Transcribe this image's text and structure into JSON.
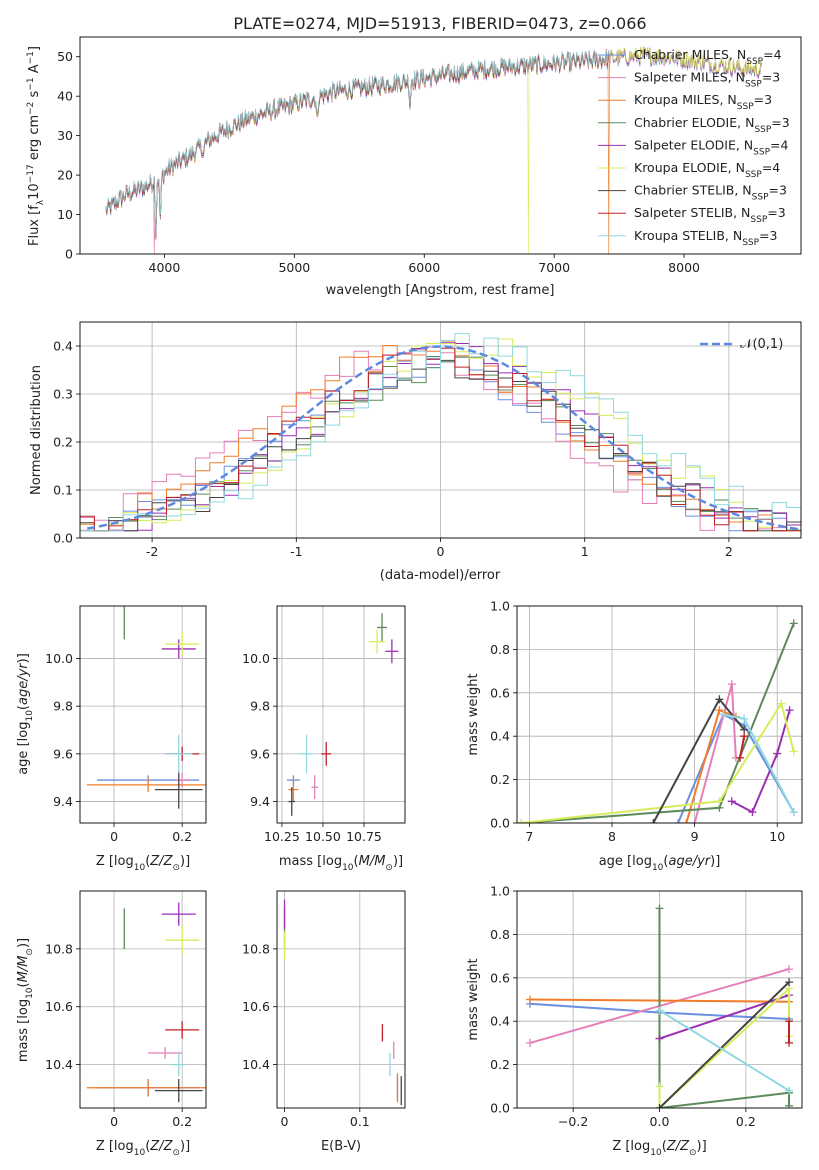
{
  "title": "PLATE=0274, MJD=51913, FIBERID=0473, z=0.066",
  "colors": {
    "chabrier_miles": "#6b8fe0",
    "salpeter_miles": "#e57fb8",
    "kroupa_miles": "#f07d2a",
    "chabrier_elodie": "#5b8a5b",
    "salpeter_elodie": "#9b2fb3",
    "kroupa_elodie": "#d7ec5a",
    "chabrier_stelib": "#444444",
    "salpeter_stelib": "#c0202a",
    "kroupa_stelib": "#8fd8e0",
    "normal_curve": "#5b8be0"
  },
  "chart_data": [
    {
      "id": "spectrum",
      "type": "line",
      "xlabel": "wavelength [Angstrom, rest frame]",
      "ylabel": "Flux [f_λ10^-17 erg cm^-2 s^-1 A^-1]",
      "xlim": [
        3350,
        8900
      ],
      "ylim": [
        0,
        55
      ],
      "xticks": [
        4000,
        5000,
        6000,
        7000,
        8000
      ],
      "yticks": [
        0,
        10,
        20,
        30,
        40,
        50
      ],
      "legend_position": "right",
      "series": [
        {
          "name": "Chabrier MILES, N_SSP=4",
          "color_key": "chabrier_miles"
        },
        {
          "name": "Salpeter MILES, N_SSP=3",
          "color_key": "salpeter_miles"
        },
        {
          "name": "Kroupa MILES, N_SSP=3",
          "color_key": "kroupa_miles"
        },
        {
          "name": "Chabrier ELODIE, N_SSP=3",
          "color_key": "chabrier_elodie"
        },
        {
          "name": "Salpeter ELODIE, N_SSP=4",
          "color_key": "salpeter_elodie"
        },
        {
          "name": "Kroupa ELODIE, N_SSP=4",
          "color_key": "kroupa_elodie"
        },
        {
          "name": "Chabrier STELIB, N_SSP=3",
          "color_key": "chabrier_stelib"
        },
        {
          "name": "Salpeter STELIB, N_SSP=3",
          "color_key": "salpeter_stelib"
        },
        {
          "name": "Kroupa STELIB, N_SSP=3",
          "color_key": "kroupa_stelib"
        }
      ],
      "continuum": {
        "x": [
          3550,
          3700,
          3850,
          3950,
          4050,
          4200,
          4350,
          4500,
          4700,
          4900,
          5100,
          5300,
          5500,
          5700,
          5900,
          6100,
          6300,
          6500,
          6700,
          6900,
          7100,
          7300,
          7500,
          7700,
          7900,
          8100,
          8300,
          8500
        ],
        "y": [
          11,
          15,
          17,
          19,
          22,
          25,
          29,
          32,
          35,
          37,
          39,
          41,
          42,
          43,
          44,
          45,
          46,
          47,
          47.5,
          48,
          48.5,
          49,
          50,
          50.5,
          50,
          49,
          48,
          47
        ]
      },
      "dips": [
        {
          "x": 3934,
          "y": 5
        },
        {
          "x": 3968,
          "y": 7
        },
        {
          "x": 4300,
          "y": 25
        },
        {
          "x": 5175,
          "y": 33
        },
        {
          "x": 5890,
          "y": 38
        }
      ],
      "dropouts": [
        {
          "series_index": 5,
          "x": 6800,
          "y": 0
        },
        {
          "series_index": 2,
          "x": 7420,
          "y": 0
        },
        {
          "series_index": 1,
          "x": 3920,
          "y": 0
        }
      ]
    },
    {
      "id": "residuals",
      "type": "step",
      "xlabel": "(data-model)/error",
      "ylabel": "Normed distribution",
      "xlim": [
        -2.5,
        2.5
      ],
      "ylim": [
        0,
        0.45
      ],
      "xticks": [
        -2,
        -1,
        0,
        1,
        2
      ],
      "yticks": [
        0.0,
        0.1,
        0.2,
        0.3,
        0.4
      ],
      "grid": true,
      "legend_position": "top-right",
      "normal_label": "𝒩(0,1)",
      "normal_mean": 0,
      "normal_sigma": 1,
      "bin_width": 0.1
    },
    {
      "id": "age_vs_Z",
      "type": "errorbar",
      "xlabel": "Z [log10(Z/Z☉)]",
      "ylabel": "age [log10(age/yr)]",
      "xlim": [
        -0.1,
        0.27
      ],
      "ylim": [
        9.31,
        10.22
      ],
      "xticks": [
        0.0,
        0.2
      ],
      "yticks": [
        9.4,
        9.6,
        9.8,
        10.0
      ],
      "grid": true,
      "points": [
        {
          "color_key": "chabrier_miles",
          "x": 0.1,
          "y": 9.49,
          "xerr": 0.15,
          "yerr": 0.02
        },
        {
          "color_key": "salpeter_miles",
          "x": 0.2,
          "y": 9.49,
          "xerr": 0.02,
          "yerr": 0.03
        },
        {
          "color_key": "kroupa_miles",
          "x": 0.1,
          "y": 9.47,
          "xerr": 0.18,
          "yerr": 0.03
        },
        {
          "color_key": "chabrier_elodie",
          "x": 0.03,
          "y": 10.15,
          "xerr": 0.0,
          "yerr": 0.07
        },
        {
          "color_key": "salpeter_elodie",
          "x": 0.19,
          "y": 10.04,
          "xerr": 0.05,
          "yerr": 0.04
        },
        {
          "color_key": "kroupa_elodie",
          "x": 0.2,
          "y": 10.06,
          "xerr": 0.05,
          "yerr": 0.05
        },
        {
          "color_key": "chabrier_stelib",
          "x": 0.19,
          "y": 9.45,
          "xerr": 0.07,
          "yerr": 0.08
        },
        {
          "color_key": "salpeter_stelib",
          "x": 0.2,
          "y": 9.6,
          "xerr": 0.05,
          "yerr": 0.03
        },
        {
          "color_key": "kroupa_stelib",
          "x": 0.19,
          "y": 9.6,
          "xerr": 0.04,
          "yerr": 0.08
        }
      ]
    },
    {
      "id": "age_vs_mass",
      "type": "errorbar",
      "xlabel": "mass [log10(M/M☉)]",
      "ylabel": "",
      "xlim": [
        10.22,
        11.0
      ],
      "ylim": [
        9.31,
        10.22
      ],
      "xticks": [
        10.25,
        10.5,
        10.75
      ],
      "tick_labels": [
        "10.25",
        "10.50",
        "10.75"
      ],
      "yticks": [
        9.4,
        9.6,
        9.8,
        10.0
      ],
      "grid": true,
      "points": [
        {
          "color_key": "chabrier_miles",
          "x": 10.32,
          "y": 9.49,
          "xerr": 0.04,
          "yerr": 0.02
        },
        {
          "color_key": "salpeter_miles",
          "x": 10.45,
          "y": 9.46,
          "xerr": 0.02,
          "yerr": 0.05
        },
        {
          "color_key": "kroupa_miles",
          "x": 10.32,
          "y": 9.45,
          "xerr": 0.03,
          "yerr": 0.05
        },
        {
          "color_key": "chabrier_elodie",
          "x": 10.86,
          "y": 10.13,
          "xerr": 0.03,
          "yerr": 0.06
        },
        {
          "color_key": "salpeter_elodie",
          "x": 10.92,
          "y": 10.03,
          "xerr": 0.04,
          "yerr": 0.05
        },
        {
          "color_key": "kroupa_elodie",
          "x": 10.83,
          "y": 10.07,
          "xerr": 0.05,
          "yerr": 0.05
        },
        {
          "color_key": "chabrier_stelib",
          "x": 10.31,
          "y": 9.4,
          "xerr": 0.02,
          "yerr": 0.06
        },
        {
          "color_key": "salpeter_stelib",
          "x": 10.52,
          "y": 9.6,
          "xerr": 0.03,
          "yerr": 0.05
        },
        {
          "color_key": "kroupa_stelib",
          "x": 10.4,
          "y": 9.6,
          "xerr": 0.04,
          "yerr": 0.08
        }
      ]
    },
    {
      "id": "massweight_vs_age",
      "type": "line",
      "xlabel": "age [log10(age/yr)]",
      "ylabel": "mass weight",
      "xlim": [
        6.85,
        10.3
      ],
      "ylim": [
        0.0,
        1.0
      ],
      "xticks": [
        7,
        8,
        9,
        10
      ],
      "yticks": [
        0.0,
        0.2,
        0.4,
        0.6,
        0.8,
        1.0
      ],
      "grid": true,
      "series": [
        {
          "color_key": "chabrier_miles",
          "points": [
            [
              8.8,
              0.0
            ],
            [
              9.35,
              0.5
            ],
            [
              9.6,
              0.45
            ],
            [
              10.2,
              0.05
            ]
          ]
        },
        {
          "color_key": "salpeter_miles",
          "points": [
            [
              9.0,
              0.0
            ],
            [
              9.45,
              0.64
            ],
            [
              9.5,
              0.3
            ]
          ]
        },
        {
          "color_key": "kroupa_miles",
          "points": [
            [
              8.9,
              0.0
            ],
            [
              9.3,
              0.52
            ],
            [
              9.5,
              0.49
            ]
          ]
        },
        {
          "color_key": "chabrier_elodie",
          "points": [
            [
              6.9,
              0.0
            ],
            [
              9.3,
              0.07
            ],
            [
              10.2,
              0.92
            ]
          ]
        },
        {
          "color_key": "salpeter_elodie",
          "points": [
            [
              9.45,
              0.1
            ],
            [
              9.7,
              0.05
            ],
            [
              10.0,
              0.32
            ],
            [
              10.15,
              0.52
            ]
          ]
        },
        {
          "color_key": "kroupa_elodie",
          "points": [
            [
              6.9,
              0.0
            ],
            [
              9.3,
              0.1
            ],
            [
              10.05,
              0.55
            ],
            [
              10.2,
              0.33
            ]
          ]
        },
        {
          "color_key": "chabrier_stelib",
          "points": [
            [
              8.5,
              0.0
            ],
            [
              9.3,
              0.57
            ],
            [
              9.6,
              0.43
            ]
          ]
        },
        {
          "color_key": "salpeter_stelib",
          "points": [
            [
              9.55,
              0.3
            ],
            [
              9.6,
              0.4
            ]
          ]
        },
        {
          "color_key": "kroupa_stelib",
          "points": [
            [
              9.35,
              0.5
            ],
            [
              9.6,
              0.48
            ],
            [
              10.2,
              0.05
            ]
          ]
        }
      ]
    },
    {
      "id": "mass_vs_Z",
      "type": "errorbar",
      "xlabel": "Z [log10(Z/Z☉)]",
      "ylabel": "mass [log10(M/M☉)]",
      "xlim": [
        -0.1,
        0.27
      ],
      "ylim": [
        10.25,
        11.0
      ],
      "xticks": [
        0.0,
        0.2
      ],
      "yticks": [
        10.4,
        10.6,
        10.8
      ],
      "grid": true,
      "points": [
        {
          "color_key": "chabrier_miles",
          "x": 0.1,
          "y": 10.32,
          "xerr": 0.15,
          "yerr": 0.03
        },
        {
          "color_key": "salpeter_miles",
          "x": 0.15,
          "y": 10.44,
          "xerr": 0.05,
          "yerr": 0.02
        },
        {
          "color_key": "kroupa_miles",
          "x": 0.1,
          "y": 10.32,
          "xerr": 0.18,
          "yerr": 0.03
        },
        {
          "color_key": "chabrier_elodie",
          "x": 0.03,
          "y": 10.87,
          "xerr": 0.0,
          "yerr": 0.07
        },
        {
          "color_key": "salpeter_elodie",
          "x": 0.19,
          "y": 10.92,
          "xerr": 0.05,
          "yerr": 0.04
        },
        {
          "color_key": "kroupa_elodie",
          "x": 0.2,
          "y": 10.83,
          "xerr": 0.05,
          "yerr": 0.05
        },
        {
          "color_key": "chabrier_stelib",
          "x": 0.19,
          "y": 10.31,
          "xerr": 0.07,
          "yerr": 0.04
        },
        {
          "color_key": "salpeter_stelib",
          "x": 0.2,
          "y": 10.52,
          "xerr": 0.05,
          "yerr": 0.03
        },
        {
          "color_key": "kroupa_stelib",
          "x": 0.19,
          "y": 10.4,
          "xerr": 0.02,
          "yerr": 0.04
        }
      ]
    },
    {
      "id": "mass_vs_ebv",
      "type": "errorbar",
      "xlabel": "E(B-V)",
      "ylabel": "",
      "xlim": [
        -0.01,
        0.16
      ],
      "ylim": [
        10.25,
        11.0
      ],
      "xticks": [
        0.0,
        0.1
      ],
      "yticks": [
        10.4,
        10.6,
        10.8
      ],
      "grid": true,
      "points": [
        {
          "color_key": "chabrier_miles",
          "x": 0.15,
          "y": 10.32,
          "xerr": 0.0,
          "yerr": 0.04
        },
        {
          "color_key": "salpeter_miles",
          "x": 0.145,
          "y": 10.45,
          "xerr": 0.0,
          "yerr": 0.03
        },
        {
          "color_key": "kroupa_miles",
          "x": 0.15,
          "y": 10.32,
          "xerr": 0.0,
          "yerr": 0.05
        },
        {
          "color_key": "chabrier_elodie",
          "x": 0.0,
          "y": 10.87,
          "xerr": 0.0,
          "yerr": 0.07
        },
        {
          "color_key": "salpeter_elodie",
          "x": 0.0,
          "y": 10.92,
          "xerr": 0.0,
          "yerr": 0.05
        },
        {
          "color_key": "kroupa_elodie",
          "x": 0.0,
          "y": 10.81,
          "xerr": 0.0,
          "yerr": 0.05
        },
        {
          "color_key": "chabrier_stelib",
          "x": 0.155,
          "y": 10.31,
          "xerr": 0.0,
          "yerr": 0.05
        },
        {
          "color_key": "salpeter_stelib",
          "x": 0.13,
          "y": 10.51,
          "xerr": 0.0,
          "yerr": 0.03
        },
        {
          "color_key": "kroupa_stelib",
          "x": 0.14,
          "y": 10.4,
          "xerr": 0.0,
          "yerr": 0.04
        }
      ]
    },
    {
      "id": "massweight_vs_Z",
      "type": "line",
      "xlabel": "Z [log10(Z/Z☉)]",
      "ylabel": "mass weight",
      "xlim": [
        -0.33,
        0.33
      ],
      "ylim": [
        0.0,
        1.0
      ],
      "xticks": [
        -0.2,
        0.0,
        0.2
      ],
      "tick_labels": [
        "−0.2",
        "0.0",
        "0.2"
      ],
      "yticks": [
        0.0,
        0.2,
        0.4,
        0.6,
        0.8,
        1.0
      ],
      "grid": true,
      "series": [
        {
          "color_key": "chabrier_miles",
          "points": [
            [
              -0.3,
              0.48
            ],
            [
              0.0,
              0.44
            ],
            [
              0.3,
              0.41
            ]
          ]
        },
        {
          "color_key": "salpeter_miles",
          "points": [
            [
              -0.3,
              0.3
            ],
            [
              0.3,
              0.64
            ]
          ]
        },
        {
          "color_key": "kroupa_miles",
          "points": [
            [
              -0.3,
              0.5
            ],
            [
              0.3,
              0.49
            ]
          ]
        },
        {
          "color_key": "chabrier_elodie",
          "points": [
            [
              0.0,
              0.0
            ],
            [
              0.0,
              0.92
            ],
            [
              0.0,
              0.0
            ],
            [
              0.3,
              0.07
            ],
            [
              0.3,
              0.01
            ]
          ]
        },
        {
          "color_key": "salpeter_elodie",
          "points": [
            [
              0.0,
              0.32
            ],
            [
              0.3,
              0.52
            ]
          ]
        },
        {
          "color_key": "kroupa_elodie",
          "points": [
            [
              0.0,
              0.1
            ],
            [
              0.0,
              0.0
            ],
            [
              0.3,
              0.55
            ],
            [
              0.3,
              0.33
            ]
          ]
        },
        {
          "color_key": "chabrier_stelib",
          "points": [
            [
              0.0,
              0.0
            ],
            [
              0.3,
              0.58
            ]
          ]
        },
        {
          "color_key": "salpeter_stelib",
          "points": [
            [
              0.3,
              0.3
            ],
            [
              0.3,
              0.4
            ]
          ]
        },
        {
          "color_key": "kroupa_stelib",
          "points": [
            [
              0.0,
              0.45
            ],
            [
              0.3,
              0.08
            ]
          ]
        }
      ]
    }
  ]
}
